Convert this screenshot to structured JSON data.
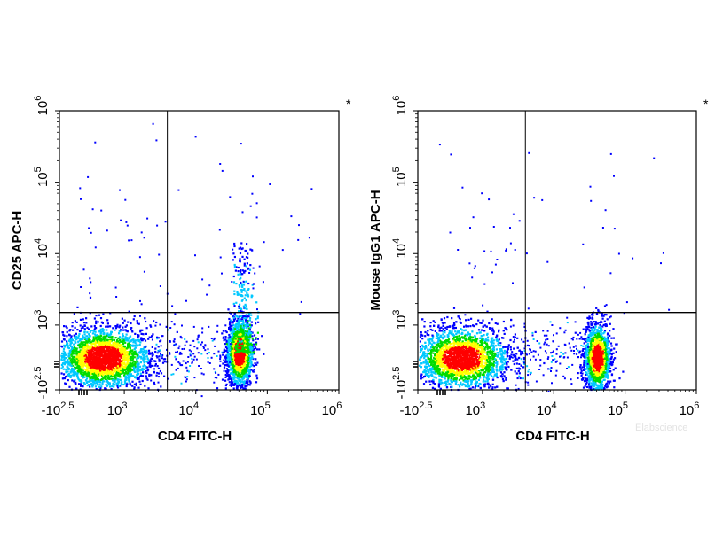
{
  "chart_data": [
    {
      "type": "scatter",
      "subtype": "flow-cytometry-density-dot-plot",
      "panel_marker": "*",
      "xlabel": "CD4 FITC-H",
      "ylabel": "CD25 APC-H",
      "x_scale": "biexponential",
      "y_scale": "biexponential",
      "xlim": [
        "-10^2.5",
        "10^6"
      ],
      "ylim": [
        "-10^2.5",
        "10^6"
      ],
      "x_ticks": [
        {
          "base": "-10",
          "exp": "2.5"
        },
        {
          "base": "10",
          "exp": "3"
        },
        {
          "base": "10",
          "exp": "4"
        },
        {
          "base": "10",
          "exp": "5"
        },
        {
          "base": "10",
          "exp": "6"
        }
      ],
      "y_ticks": [
        {
          "base": "-10",
          "exp": "2.5"
        },
        {
          "base": "10",
          "exp": "3"
        },
        {
          "base": "10",
          "exp": "4"
        },
        {
          "base": "10",
          "exp": "5"
        },
        {
          "base": "10",
          "exp": "6"
        }
      ],
      "quadrant_gate": {
        "x": 4000,
        "y": 1500
      },
      "grid": false,
      "colormap": "blue-cyan-green-yellow-red density",
      "populations": [
        {
          "x_center": 500,
          "y_center": 300,
          "density": "high"
        },
        {
          "x_center": 40000,
          "y_center": 400,
          "density": "high",
          "tail_up_to_y": 15000
        }
      ]
    },
    {
      "type": "scatter",
      "subtype": "flow-cytometry-density-dot-plot",
      "panel_marker": "*",
      "xlabel": "CD4 FITC-H",
      "ylabel": "Mouse IgG1 APC-H",
      "x_scale": "biexponential",
      "y_scale": "biexponential",
      "xlim": [
        "-10^2.5",
        "10^6"
      ],
      "ylim": [
        "-10^2.5",
        "10^6"
      ],
      "x_ticks": [
        {
          "base": "-10",
          "exp": "2.5"
        },
        {
          "base": "10",
          "exp": "3"
        },
        {
          "base": "10",
          "exp": "4"
        },
        {
          "base": "10",
          "exp": "5"
        },
        {
          "base": "10",
          "exp": "6"
        }
      ],
      "y_ticks": [
        {
          "base": "-10",
          "exp": "2.5"
        },
        {
          "base": "10",
          "exp": "3"
        },
        {
          "base": "10",
          "exp": "4"
        },
        {
          "base": "10",
          "exp": "5"
        },
        {
          "base": "10",
          "exp": "6"
        }
      ],
      "quadrant_gate": {
        "x": 4000,
        "y": 1500
      },
      "grid": false,
      "colormap": "blue-cyan-green-yellow-red density",
      "populations": [
        {
          "x_center": 500,
          "y_center": 300,
          "density": "high"
        },
        {
          "x_center": 40000,
          "y_center": 300,
          "density": "high"
        }
      ]
    }
  ],
  "watermark": "Elabscience",
  "colors": {
    "density_low": "#0000ff",
    "density_mid_low": "#00c8ff",
    "density_mid": "#00dc00",
    "density_mid_high": "#ffff00",
    "density_high": "#ff0000",
    "axes": "#000000"
  }
}
